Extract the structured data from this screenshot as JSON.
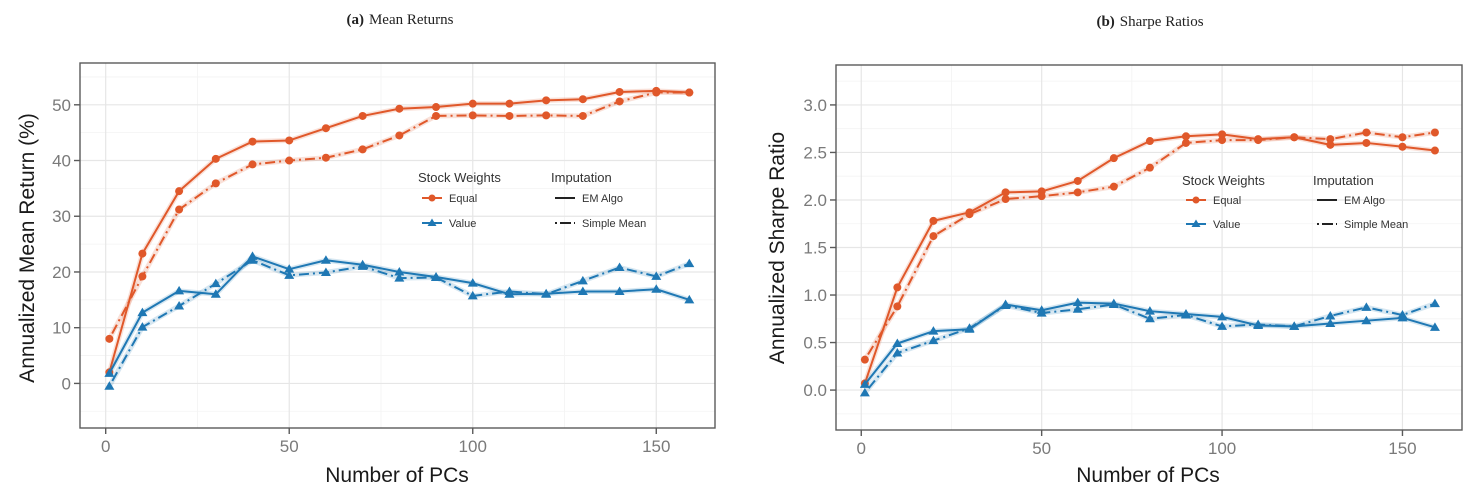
{
  "colors": {
    "equal": "#e0582a",
    "value": "#1f78b4",
    "line_black": "#222222"
  },
  "chart_data": [
    {
      "type": "line",
      "panel_label": "(a)",
      "title": "Mean Returns",
      "xlabel": "Number of PCs",
      "ylabel": "Annualized Mean Return (%)",
      "xlim": [
        -7,
        166
      ],
      "ylim": [
        -8,
        57.5
      ],
      "xticks": [
        0,
        50,
        100,
        150
      ],
      "xtick_labels": [
        "0",
        "50",
        "100",
        "150"
      ],
      "yticks": [
        0,
        10,
        20,
        30,
        40,
        50
      ],
      "ytick_labels": [
        "0",
        "10",
        "20",
        "30",
        "40",
        "50"
      ],
      "grid": true,
      "legend_placement": "center-right",
      "x": [
        1,
        10,
        20,
        30,
        40,
        50,
        60,
        70,
        80,
        90,
        100,
        110,
        120,
        130,
        140,
        150,
        159
      ],
      "series": [
        {
          "name": "Equal / EM Algo",
          "weights": "equal",
          "imputation": "em",
          "values": [
            2.0,
            23.3,
            34.5,
            40.3,
            43.4,
            43.6,
            45.8,
            48.0,
            49.3,
            49.6,
            50.2,
            50.2,
            50.8,
            51.0,
            52.3,
            52.5,
            52.2
          ]
        },
        {
          "name": "Equal / Simple Mean",
          "weights": "equal",
          "imputation": "simple",
          "values": [
            8.0,
            19.2,
            31.2,
            35.9,
            39.3,
            40.0,
            40.5,
            42.0,
            44.5,
            48.0,
            48.1,
            48.0,
            48.1,
            48.0,
            50.6,
            52.2,
            52.2
          ]
        },
        {
          "name": "Value / EM Algo",
          "weights": "value",
          "imputation": "em",
          "values": [
            1.8,
            12.7,
            16.6,
            16.0,
            22.8,
            20.5,
            22.1,
            21.3,
            20.0,
            19.1,
            18.0,
            16.0,
            16.1,
            16.5,
            16.5,
            16.9,
            15.0
          ]
        },
        {
          "name": "Value / Simple Mean",
          "weights": "value",
          "imputation": "simple",
          "values": [
            -0.5,
            10.1,
            13.9,
            17.9,
            22.1,
            19.4,
            19.9,
            21.0,
            18.9,
            19.0,
            15.7,
            16.5,
            16.0,
            18.4,
            20.8,
            19.2,
            21.5
          ]
        }
      ],
      "legend": {
        "weights_title": "Stock Weights",
        "weights_items": [
          "Equal",
          "Value"
        ],
        "imputation_title": "Imputation",
        "imputation_items": [
          "EM Algo",
          "Simple Mean"
        ]
      }
    },
    {
      "type": "line",
      "panel_label": "(b)",
      "title": "Sharpe Ratios",
      "xlabel": "Number of PCs",
      "ylabel": "Annualized Sharpe Ratio",
      "xlim": [
        -7,
        166.5
      ],
      "ylim": [
        -0.42,
        3.42
      ],
      "xticks": [
        0,
        50,
        100,
        150
      ],
      "xtick_labels": [
        "0",
        "50",
        "100",
        "150"
      ],
      "yticks": [
        0,
        0.5,
        1.0,
        1.5,
        2.0,
        2.5,
        3.0
      ],
      "ytick_labels": [
        "0.0",
        "0.5",
        "1.0",
        "1.5",
        "2.0",
        "2.5",
        "3.0"
      ],
      "grid": true,
      "legend_placement": "center-right",
      "x": [
        1,
        10,
        20,
        30,
        40,
        50,
        60,
        70,
        80,
        90,
        100,
        110,
        120,
        130,
        140,
        150,
        159
      ],
      "series": [
        {
          "name": "Equal / EM Algo",
          "weights": "equal",
          "imputation": "em",
          "values": [
            0.07,
            1.08,
            1.78,
            1.87,
            2.08,
            2.09,
            2.2,
            2.44,
            2.62,
            2.67,
            2.69,
            2.64,
            2.66,
            2.58,
            2.6,
            2.56,
            2.52
          ]
        },
        {
          "name": "Equal / Simple Mean",
          "weights": "equal",
          "imputation": "simple",
          "values": [
            0.32,
            0.88,
            1.62,
            1.85,
            2.01,
            2.04,
            2.08,
            2.14,
            2.34,
            2.6,
            2.63,
            2.63,
            2.66,
            2.64,
            2.71,
            2.66,
            2.71
          ]
        },
        {
          "name": "Value / EM Algo",
          "weights": "value",
          "imputation": "em",
          "values": [
            0.06,
            0.49,
            0.62,
            0.64,
            0.9,
            0.84,
            0.92,
            0.91,
            0.83,
            0.8,
            0.77,
            0.68,
            0.67,
            0.7,
            0.73,
            0.76,
            0.66
          ]
        },
        {
          "name": "Value / Simple Mean",
          "weights": "value",
          "imputation": "simple",
          "values": [
            -0.03,
            0.39,
            0.52,
            0.65,
            0.89,
            0.81,
            0.85,
            0.9,
            0.75,
            0.79,
            0.67,
            0.69,
            0.67,
            0.78,
            0.87,
            0.79,
            0.91
          ]
        }
      ],
      "legend": {
        "weights_title": "Stock Weights",
        "weights_items": [
          "Equal",
          "Value"
        ],
        "imputation_title": "Imputation",
        "imputation_items": [
          "EM Algo",
          "Simple Mean"
        ]
      }
    }
  ]
}
